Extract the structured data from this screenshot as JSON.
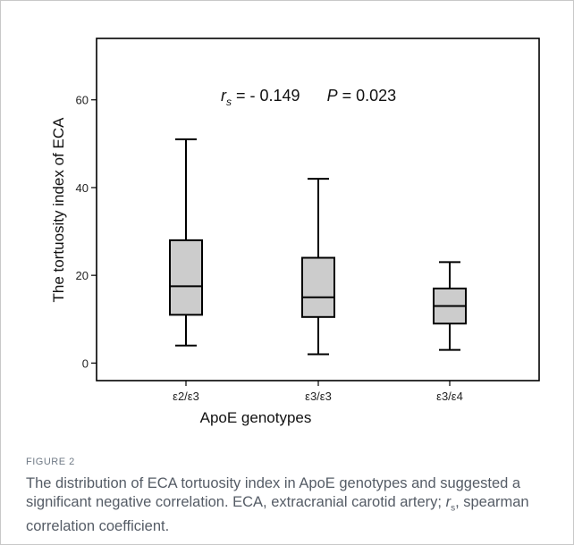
{
  "chart_data": {
    "type": "box",
    "ylabel": "The tortuosity index of ECA",
    "xlabel": "ApoE genotypes",
    "ylim": [
      -4,
      74
    ],
    "yticks": [
      0,
      20,
      40,
      60
    ],
    "categories": [
      "ε2/ε3",
      "ε3/ε3",
      "ε3/ε4"
    ],
    "boxes": [
      {
        "category": "ε2/ε3",
        "min": 4,
        "q1": 11,
        "median": 17.5,
        "q3": 28,
        "max": 51
      },
      {
        "category": "ε3/ε3",
        "min": 2,
        "q1": 10.5,
        "median": 15,
        "q3": 24,
        "max": 42
      },
      {
        "category": "ε3/ε4",
        "min": 3,
        "q1": 9,
        "median": 13,
        "q3": 17,
        "max": 23
      }
    ],
    "annotation": {
      "r_symbol": "r",
      "r_subscript": "s",
      "r_value": " = - 0.149",
      "p_symbol": "P",
      "p_value": " = 0.023"
    },
    "box_fill": "#cccccc"
  },
  "figure": {
    "label": "FIGURE 2",
    "caption_main": "The distribution of ECA tortuosity index in ApoE genotypes and suggested a significant negative correlation. ECA, extracranial carotid artery; ",
    "caption_r": "r",
    "caption_r_sub": "s",
    "caption_tail": ", spearman correlation coefficient."
  }
}
